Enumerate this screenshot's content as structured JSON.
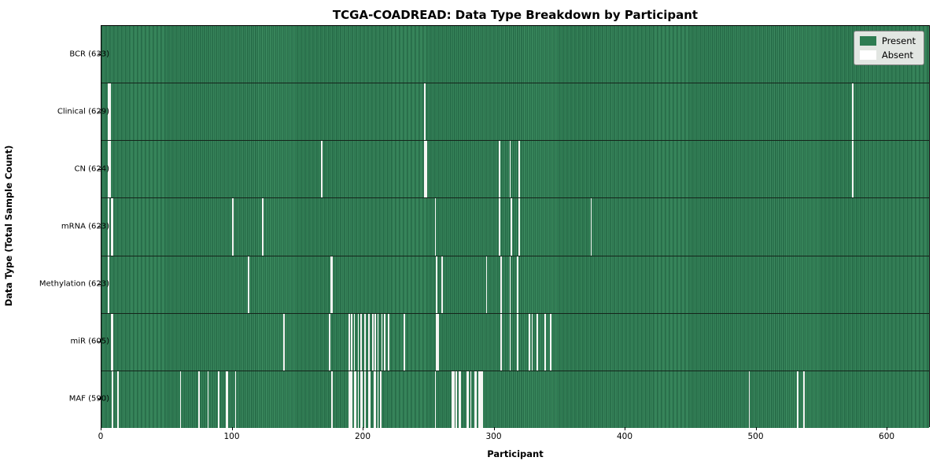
{
  "chart_data": {
    "type": "heatmap",
    "title": "TCGA-COADREAD: Data Type Breakdown by Participant",
    "xlabel": "Participant",
    "ylabel": "Data Type (Total Sample Count)",
    "x_ticks": [
      0,
      100,
      200,
      300,
      400,
      500,
      600
    ],
    "x_range": [
      0,
      633
    ],
    "total_participants": 633,
    "grid": false,
    "legend_position": "upper right",
    "legend": [
      {
        "label": "Present",
        "color": "#2e7c52"
      },
      {
        "label": "Absent",
        "color": "#ffffff"
      }
    ],
    "colors": {
      "present": "#2e7c52",
      "absent": "#f6f6f4",
      "row_separator": "#15241b",
      "legend_background": "#e2e6e2"
    },
    "rows": [
      {
        "data_type": "BCR",
        "label": "BCR (633)",
        "present_count": 633,
        "absent_count": 0,
        "absent_participants": []
      },
      {
        "data_type": "Clinical",
        "label": "Clinical (629)",
        "present_count": 629,
        "absent_count": 4,
        "absent_participants": [
          5,
          6,
          247,
          574
        ]
      },
      {
        "data_type": "CN",
        "label": "CN (624)",
        "present_count": 624,
        "absent_count": 9,
        "absent_participants": [
          5,
          6,
          168,
          247,
          248,
          304,
          312,
          319,
          574
        ]
      },
      {
        "data_type": "mRNA",
        "label": "mRNA (623)",
        "present_count": 623,
        "absent_count": 10,
        "absent_participants": [
          5,
          7,
          8,
          100,
          123,
          255,
          304,
          313,
          319,
          374
        ]
      },
      {
        "data_type": "Methylation",
        "label": "Methylation (623)",
        "present_count": 623,
        "absent_count": 10,
        "absent_participants": [
          5,
          112,
          175,
          176,
          256,
          260,
          294,
          305,
          312,
          318
        ]
      },
      {
        "data_type": "miR",
        "label": "miR (605)",
        "present_count": 605,
        "absent_count": 28,
        "absent_participants": [
          7,
          8,
          139,
          174,
          189,
          191,
          193,
          196,
          198,
          201,
          204,
          207,
          209,
          211,
          214,
          216,
          219,
          231,
          256,
          257,
          305,
          312,
          318,
          327,
          329,
          333,
          339,
          343
        ]
      },
      {
        "data_type": "MAF",
        "label": "MAF (590)",
        "present_count": 590,
        "absent_count": 43,
        "absent_participants": [
          8,
          12,
          60,
          74,
          81,
          89,
          95,
          96,
          102,
          176,
          189,
          190,
          191,
          193,
          194,
          196,
          198,
          199,
          201,
          204,
          205,
          208,
          209,
          211,
          213,
          255,
          268,
          269,
          271,
          273,
          274,
          279,
          280,
          282,
          285,
          286,
          288,
          289,
          290,
          291,
          495,
          532,
          537
        ]
      }
    ]
  }
}
